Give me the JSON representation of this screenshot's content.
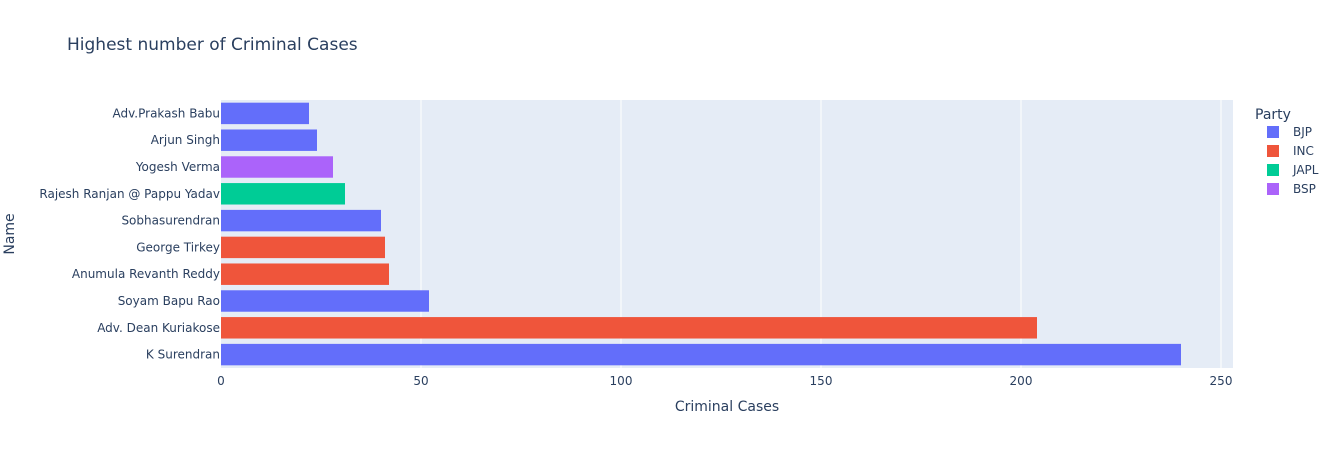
{
  "chart_data": {
    "type": "bar",
    "orientation": "horizontal",
    "title": "Highest number of Criminal Cases",
    "xlabel": "Criminal Cases",
    "ylabel": "Name",
    "xlim": [
      0,
      253
    ],
    "xticks": [
      0,
      50,
      100,
      150,
      200,
      250
    ],
    "grid": true,
    "legend": {
      "title": "Party",
      "placement": "top-right",
      "entries": [
        {
          "name": "BJP",
          "color": "#636efa"
        },
        {
          "name": "INC",
          "color": "#ef553b"
        },
        {
          "name": "JAPL",
          "color": "#00cc96"
        },
        {
          "name": "BSP",
          "color": "#ab63fa"
        }
      ]
    },
    "bars": [
      {
        "name": "Adv.Prakash Babu",
        "party": "BJP",
        "value": 22
      },
      {
        "name": "Arjun Singh",
        "party": "BJP",
        "value": 24
      },
      {
        "name": "Yogesh Verma",
        "party": "BSP",
        "value": 28
      },
      {
        "name": "Rajesh Ranjan @ Pappu Yadav",
        "party": "JAPL",
        "value": 31
      },
      {
        "name": "Sobhasurendran",
        "party": "BJP",
        "value": 40
      },
      {
        "name": "George Tirkey",
        "party": "INC",
        "value": 41
      },
      {
        "name": "Anumula Revanth Reddy",
        "party": "INC",
        "value": 42
      },
      {
        "name": "Soyam Bapu Rao",
        "party": "BJP",
        "value": 52
      },
      {
        "name": "Adv. Dean Kuriakose",
        "party": "INC",
        "value": 204
      },
      {
        "name": "K Surendran",
        "party": "BJP",
        "value": 240
      }
    ],
    "colors": {
      "plot_background": "#e5ecf6",
      "gridline": "#ffffff",
      "text": "#2a3f5f"
    }
  }
}
